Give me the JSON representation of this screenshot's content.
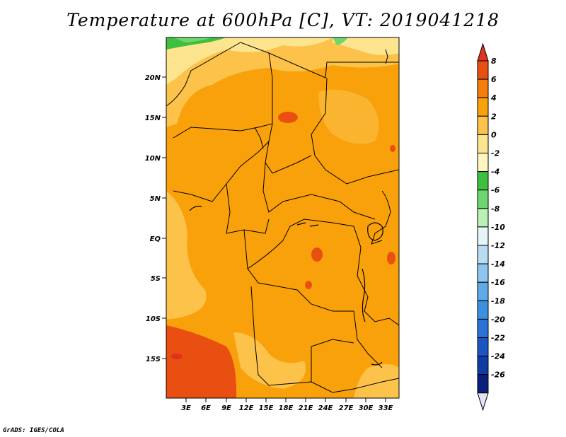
{
  "title": "Temperature at 600hPa [C], VT: 2019041218",
  "footer": "GrADS: IGES/COLA",
  "map": {
    "lat_ticks": [
      "20N",
      "15N",
      "10N",
      "5N",
      "EQ",
      "5S",
      "10S",
      "15S"
    ],
    "lon_ticks": [
      "3E",
      "6E",
      "9E",
      "12E",
      "15E",
      "18E",
      "21E",
      "24E",
      "27E",
      "30E",
      "33E"
    ]
  },
  "colorbar": {
    "labels": [
      "8",
      "6",
      "4",
      "2",
      "0",
      "-2",
      "-4",
      "-6",
      "-8",
      "-10",
      "-12",
      "-14",
      "-16",
      "-18",
      "-20",
      "-22",
      "-24",
      "-26"
    ],
    "colors": [
      "#e0321f",
      "#ea4f12",
      "#f57d0a",
      "#f9a10a",
      "#fcc24a",
      "#fde48f",
      "#fef6bf",
      "#3fbf3f",
      "#6fd66f",
      "#b9f0b4",
      "#e3f5f7",
      "#b7dcf2",
      "#8cc5ee",
      "#5ea9e8",
      "#3d8fe0",
      "#2a72d3",
      "#1a55c1",
      "#0e3ba4",
      "#0a1f7a",
      "#e6e2f4"
    ]
  }
}
